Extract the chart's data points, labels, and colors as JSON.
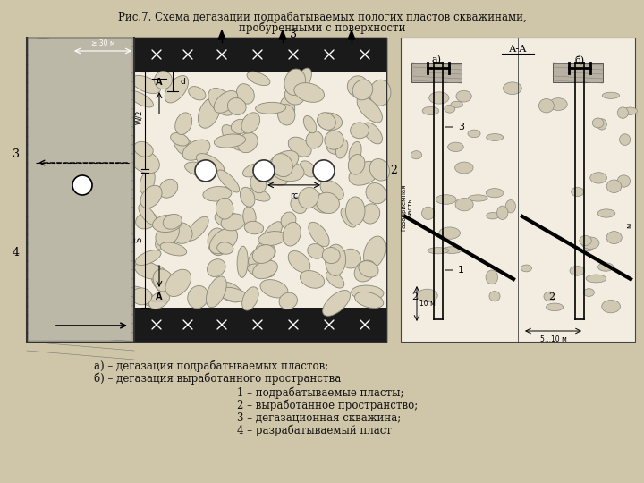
{
  "title_line1": "Рис.7. Схема дегазации подрабатываемых пологих пластов скважинами,",
  "title_line2": "пробуренными с поверхности",
  "bg_color": "#cfc5a8",
  "diagram_bg": "#f2ede0",
  "legend_a": "а) – дегазация подрабатываемых пластов;",
  "legend_b": "б) – дегазация выработанного пространства",
  "legend_1": "1 – подрабатываемые пласты;",
  "legend_2": "2 – выработанное пространство;",
  "legend_3": "3 – дегазационная скважина;",
  "legend_4": "4 – разрабатываемый пласт",
  "title_fontsize": 8.5,
  "legend_fontsize": 8.5,
  "text_color": "#111111",
  "coal_color": "#1a1a1a",
  "wall_color": "#888880",
  "stone_color": "#d8d0b8",
  "stone_edge": "#888878"
}
